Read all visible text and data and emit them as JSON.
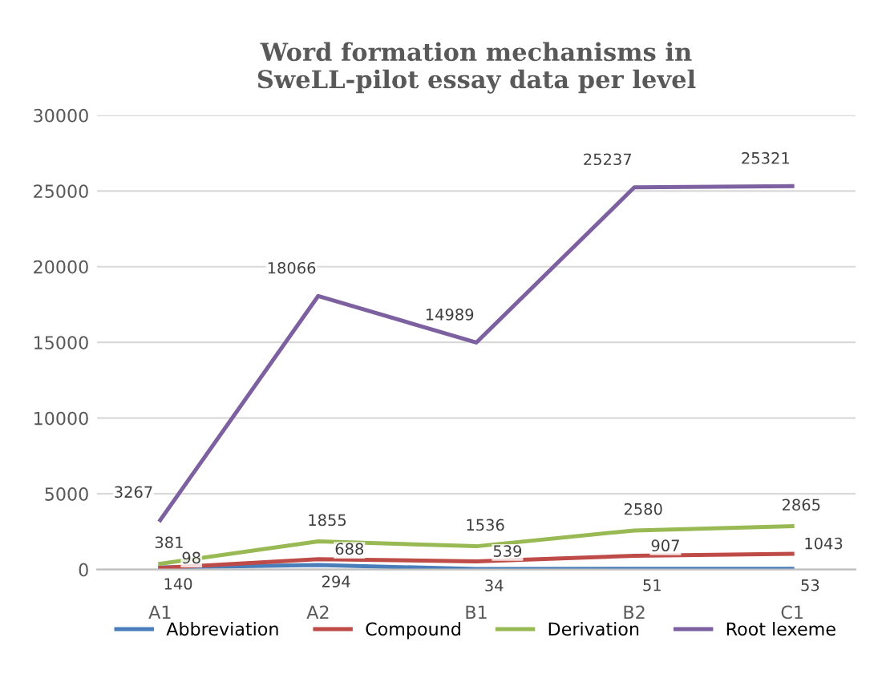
{
  "chart_data": {
    "type": "line",
    "title": "Word formation mechanisms in\nSweLL-pilot essay data per level",
    "categories": [
      "A1",
      "A2",
      "B1",
      "B2",
      "C1"
    ],
    "series": [
      {
        "name": "Abbreviation",
        "color": "#4a7ebb",
        "values": [
          140,
          294,
          34,
          51,
          53
        ]
      },
      {
        "name": "Compound",
        "color": "#be4b48",
        "values": [
          98,
          688,
          539,
          907,
          1043
        ]
      },
      {
        "name": "Derivation",
        "color": "#98b954",
        "values": [
          381,
          1855,
          1536,
          2580,
          2865
        ]
      },
      {
        "name": "Root lexeme",
        "color": "#7d60a0",
        "values": [
          3267,
          18066,
          14989,
          25237,
          25321
        ]
      }
    ],
    "ylim": [
      0,
      30000
    ],
    "yticks": [
      0,
      5000,
      10000,
      15000,
      20000,
      25000,
      30000
    ],
    "grid": "y",
    "legend": "bottom",
    "data_labels": true,
    "marker": "none",
    "line_style": "solid"
  }
}
